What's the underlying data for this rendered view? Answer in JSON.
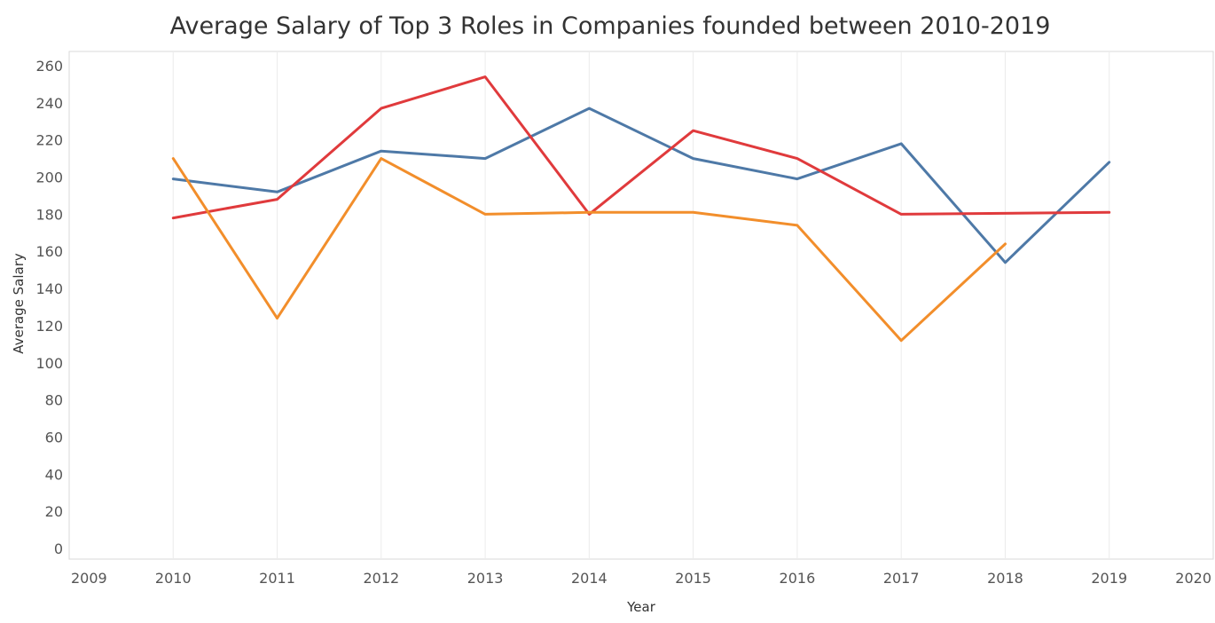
{
  "chart_data": {
    "type": "line",
    "title": "Average Salary of Top 3 Roles in Companies founded between 2010-2019",
    "xlabel": "Year",
    "ylabel": "Average Salary",
    "x_ticks": [
      "2009",
      "2010",
      "2011",
      "2012",
      "2013",
      "2014",
      "2015",
      "2016",
      "2017",
      "2018",
      "2019",
      "2020"
    ],
    "y_ticks": [
      "0",
      "20",
      "40",
      "60",
      "80",
      "100",
      "120",
      "140",
      "160",
      "180",
      "200",
      "220",
      "240",
      "260"
    ],
    "xlim": [
      2009,
      2020
    ],
    "ylim": [
      0,
      260
    ],
    "grid": {
      "vertical": true,
      "horizontal": false
    },
    "legend": "none",
    "series": [
      {
        "color": "#4e79a7",
        "x": [
          2010,
          2011,
          2012,
          2013,
          2014,
          2015,
          2016,
          2017,
          2018,
          2019
        ],
        "values": [
          199,
          192,
          214,
          210,
          237,
          210,
          199,
          218,
          154,
          208
        ]
      },
      {
        "color": "#e03a3c",
        "x": [
          2010,
          2011,
          2012,
          2013,
          2014,
          2015,
          2016,
          2017,
          2019
        ],
        "values": [
          178,
          188,
          237,
          254,
          180,
          225,
          210,
          180,
          181
        ]
      },
      {
        "color": "#f28e2b",
        "x": [
          2010,
          2011,
          2012,
          2013,
          2014,
          2015,
          2016,
          2017,
          2018
        ],
        "values": [
          210,
          124,
          210,
          180,
          181,
          181,
          174,
          112,
          164
        ]
      }
    ]
  }
}
